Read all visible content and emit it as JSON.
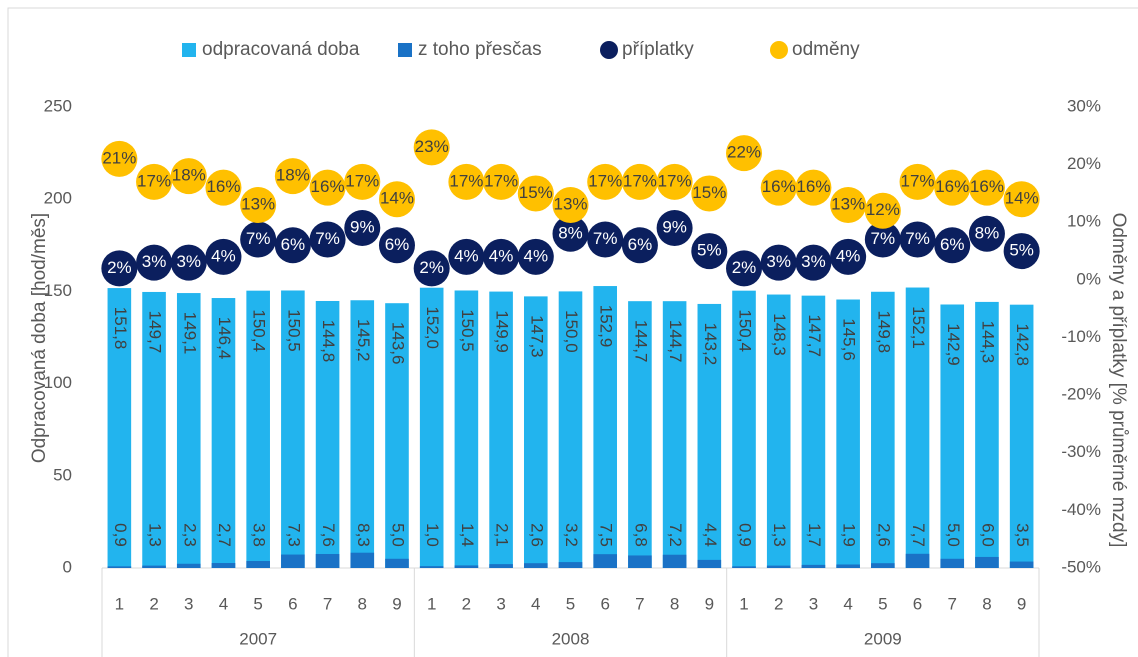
{
  "chart_data": {
    "type": "bar",
    "y_label": "Odpracovaná doba [hod/měs]",
    "y2_label": "Odměny a příplatky [% průměrné mzdy]",
    "categories": [
      "1",
      "2",
      "3",
      "4",
      "5",
      "6",
      "7",
      "8",
      "9",
      "1",
      "2",
      "3",
      "4",
      "5",
      "6",
      "7",
      "8",
      "9",
      "1",
      "2",
      "3",
      "4",
      "5",
      "6",
      "7",
      "8",
      "9"
    ],
    "groups": [
      "2007",
      "2008",
      "2009"
    ],
    "ylim": [
      0,
      250
    ],
    "yticks": [
      0,
      50,
      100,
      150,
      200,
      250
    ],
    "y2lim": [
      -50,
      30
    ],
    "y2ticks": [
      {
        "value": -50,
        "label": "-50%"
      },
      {
        "value": -40,
        "label": "-40%"
      },
      {
        "value": -30,
        "label": "-30%"
      },
      {
        "value": -20,
        "label": "-20%"
      },
      {
        "value": -10,
        "label": "-10%"
      },
      {
        "value": 0,
        "label": "0%"
      },
      {
        "value": 10,
        "label": "10%"
      },
      {
        "value": 20,
        "label": "20%"
      },
      {
        "value": 30,
        "label": "30%"
      }
    ],
    "legend": "top",
    "series": [
      {
        "name": "odpracovaná doba",
        "type": "bar",
        "color": "#22b4ee",
        "values": [
          151.8,
          149.7,
          149.1,
          146.4,
          150.4,
          150.5,
          144.8,
          145.2,
          143.6,
          152.0,
          150.5,
          149.9,
          147.3,
          150.0,
          152.9,
          144.7,
          144.7,
          143.2,
          150.4,
          148.3,
          147.7,
          145.6,
          149.8,
          152.1,
          142.9,
          144.3,
          142.8
        ],
        "value_labels": [
          "151,8",
          "149,7",
          "149,1",
          "146,4",
          "150,4",
          "150,5",
          "144,8",
          "145,2",
          "143,6",
          "152,0",
          "150,5",
          "149,9",
          "147,3",
          "150,0",
          "152,9",
          "144,7",
          "144,7",
          "143,2",
          "150,4",
          "148,3",
          "147,7",
          "145,6",
          "149,8",
          "152,1",
          "142,9",
          "144,3",
          "142,8"
        ]
      },
      {
        "name": "z toho přesčas",
        "type": "bar",
        "color": "#1a72c6",
        "values": [
          0.9,
          1.3,
          2.3,
          2.7,
          3.8,
          7.3,
          7.6,
          8.3,
          5.0,
          1.0,
          1.4,
          2.1,
          2.6,
          3.2,
          7.5,
          6.8,
          7.2,
          4.4,
          0.9,
          1.3,
          1.7,
          1.9,
          2.6,
          7.7,
          5.0,
          6.0,
          3.5
        ],
        "value_labels": [
          "0,9",
          "1,3",
          "2,3",
          "2,7",
          "3,8",
          "7,3",
          "7,6",
          "8,3",
          "5,0",
          "1,0",
          "1,4",
          "2,1",
          "2,6",
          "3,2",
          "7,5",
          "6,8",
          "7,2",
          "4,4",
          "0,9",
          "1,3",
          "1,7",
          "1,9",
          "2,6",
          "7,7",
          "5,0",
          "6,0",
          "3,5"
        ]
      },
      {
        "name": "příplatky",
        "type": "scatter",
        "axis": "y2",
        "color": "#0b1f5e",
        "label_color": "#ffffff",
        "values": [
          2,
          3,
          3,
          4,
          7,
          6,
          7,
          9,
          6,
          2,
          4,
          4,
          4,
          8,
          7,
          6,
          9,
          5,
          2,
          3,
          3,
          4,
          7,
          7,
          6,
          8,
          5
        ],
        "value_labels": [
          "2%",
          "3%",
          "3%",
          "4%",
          "7%",
          "6%",
          "7%",
          "9%",
          "6%",
          "2%",
          "4%",
          "4%",
          "4%",
          "8%",
          "7%",
          "6%",
          "9%",
          "5%",
          "2%",
          "3%",
          "3%",
          "4%",
          "7%",
          "7%",
          "6%",
          "8%",
          "5%"
        ]
      },
      {
        "name": "odměny",
        "type": "scatter",
        "axis": "y2",
        "color": "#ffc000",
        "label_color": "#404040",
        "values": [
          21,
          17,
          18,
          16,
          13,
          18,
          16,
          17,
          14,
          23,
          17,
          17,
          15,
          13,
          17,
          17,
          17,
          15,
          22,
          16,
          16,
          13,
          12,
          17,
          16,
          16,
          14
        ],
        "value_labels": [
          "21%",
          "17%",
          "18%",
          "16%",
          "13%",
          "18%",
          "16%",
          "17%",
          "14%",
          "23%",
          "17%",
          "17%",
          "15%",
          "13%",
          "17%",
          "17%",
          "17%",
          "15%",
          "22%",
          "16%",
          "16%",
          "13%",
          "12%",
          "17%",
          "16%",
          "16%",
          "14%"
        ]
      }
    ]
  }
}
